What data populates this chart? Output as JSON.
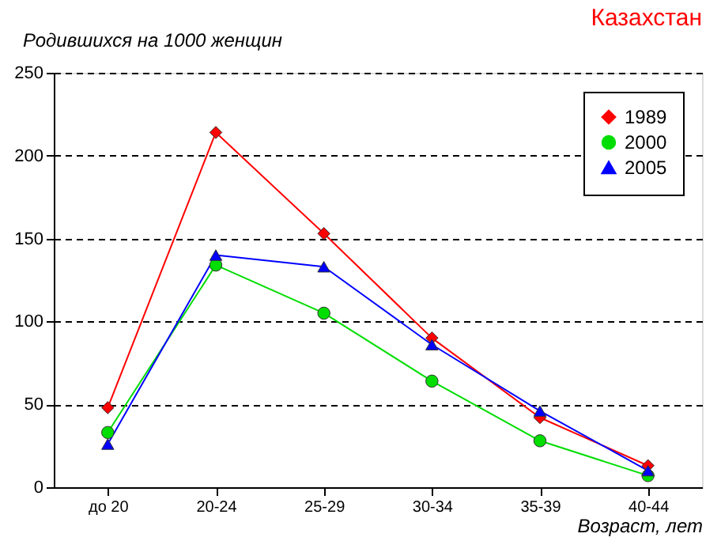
{
  "chart_data": {
    "type": "line",
    "title": "Казахстан",
    "ylabel": "Родившихся на 1000 женщин",
    "xlabel": "Возраст, лет",
    "categories": [
      "до 20",
      "20-24",
      "25-29",
      "30-34",
      "35-39",
      "40-44"
    ],
    "series": [
      {
        "name": "1989",
        "color": "#ff0000",
        "marker": "diamond",
        "values": [
          48,
          214,
          153,
          90,
          42,
          13
        ]
      },
      {
        "name": "2000",
        "color": "#00dd00",
        "marker": "circle",
        "values": [
          33,
          134,
          105,
          64,
          28,
          7
        ]
      },
      {
        "name": "2005",
        "color": "#0000ff",
        "marker": "triangle",
        "values": [
          26,
          140,
          133,
          86,
          46,
          10
        ]
      }
    ],
    "ylim": [
      0,
      250
    ],
    "yticks": [
      0,
      50,
      100,
      150,
      200,
      250
    ],
    "grid": "y",
    "legend": "top right",
    "line_style": "solid"
  }
}
